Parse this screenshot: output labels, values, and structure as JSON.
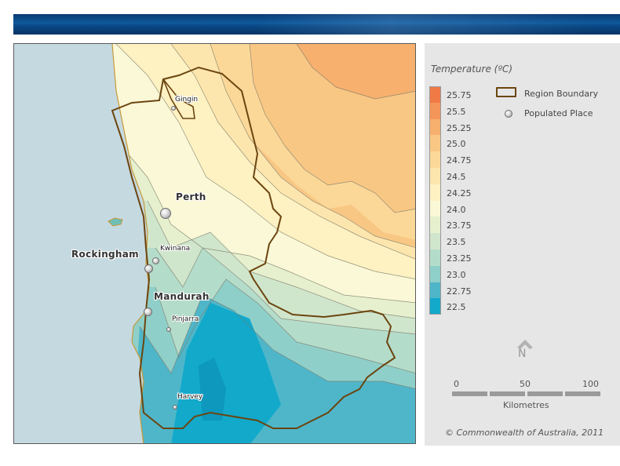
{
  "map": {
    "places": {
      "gingin": "Gingin",
      "perth": "Perth",
      "kwinana": "Kwinana",
      "rockingham": "Rockingham",
      "mandurah": "Mandurah",
      "pinjarra": "Pinjarra",
      "harvey": "Harvey"
    },
    "colors": {
      "ocean": "#c5d9e0",
      "region_boundary": "#6b4510",
      "coast": "#c89a3a"
    }
  },
  "legend": {
    "title": "Temperature (ºC)",
    "classes": [
      {
        "label": "25.75",
        "color": "#f07a46"
      },
      {
        "label": "25.5",
        "color": "#f4955a"
      },
      {
        "label": "25.25",
        "color": "#f7b06e"
      },
      {
        "label": "25.0",
        "color": "#f9c784"
      },
      {
        "label": "24.75",
        "color": "#fbd898"
      },
      {
        "label": "24.5",
        "color": "#fde6ad"
      },
      {
        "label": "24.25",
        "color": "#fef1c2"
      },
      {
        "label": "24.0",
        "color": "#fbf8d7"
      },
      {
        "label": "23.75",
        "color": "#e6f0ce"
      },
      {
        "label": "23.5",
        "color": "#d0e6cc"
      },
      {
        "label": "23.25",
        "color": "#b4dcca"
      },
      {
        "label": "23.0",
        "color": "#8fcfc9"
      },
      {
        "label": "22.75",
        "color": "#4fb6c9"
      },
      {
        "label": "22.5",
        "color": "#12a9cb"
      }
    ],
    "region_boundary_label": "Region Boundary",
    "populated_place_label": "Populated Place",
    "north_label": "N",
    "scale": {
      "ticks": [
        "0",
        "50",
        "100"
      ],
      "unit": "Kilometres"
    },
    "credit": "© Commonwealth of Australia, 2011"
  }
}
